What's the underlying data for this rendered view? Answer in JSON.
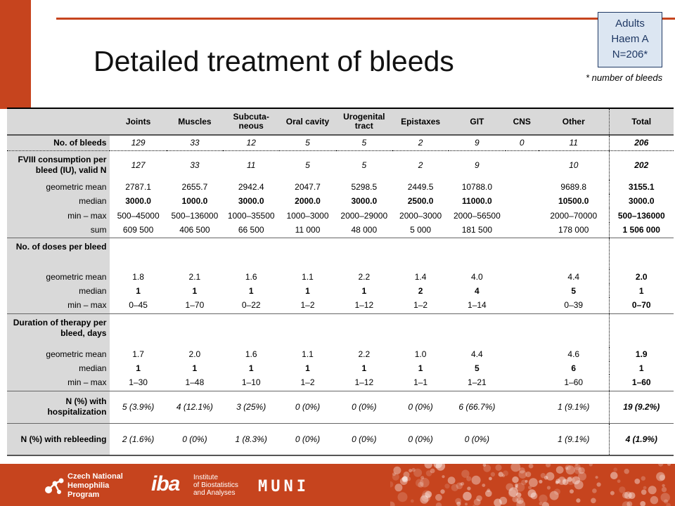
{
  "title": "Detailed treatment of bleeds",
  "info_box": {
    "line1": "Adults",
    "line2": "Haem A",
    "line3": "N=206*"
  },
  "footnote": "* number of bleeds",
  "columns": [
    "Joints",
    "Muscles",
    "Subcuta-neous",
    "Oral cavity",
    "Urogenital tract",
    "Epistaxes",
    "GIT",
    "CNS",
    "Other",
    "Total"
  ],
  "rows": {
    "bleeds": {
      "label": "No. of bleeds",
      "values": [
        "129",
        "33",
        "12",
        "5",
        "5",
        "2",
        "9",
        "0",
        "11",
        "206"
      ]
    },
    "fviii_valid": {
      "label": "FVIII consumption per bleed (IU), valid N",
      "values": [
        "127",
        "33",
        "11",
        "5",
        "5",
        "2",
        "9",
        "",
        "10",
        "202"
      ]
    },
    "fviii_geo": {
      "label": "geometric mean",
      "values": [
        "2787.1",
        "2655.7",
        "2942.4",
        "2047.7",
        "5298.5",
        "2449.5",
        "10788.0",
        "",
        "9689.8",
        "3155.1"
      ]
    },
    "fviii_median": {
      "label": "median",
      "values": [
        "3000.0",
        "1000.0",
        "3000.0",
        "2000.0",
        "3000.0",
        "2500.0",
        "11000.0",
        "",
        "10500.0",
        "3000.0"
      ]
    },
    "fviii_minmax": {
      "label": "min – max",
      "values": [
        "500–45000",
        "500–136000",
        "1000–35500",
        "1000–3000",
        "2000–29000",
        "2000–3000",
        "2000–56500",
        "",
        "2000–70000",
        "500–136000"
      ]
    },
    "fviii_sum": {
      "label": "sum",
      "values": [
        "609 500",
        "406 500",
        "66 500",
        "11 000",
        "48 000",
        "5 000",
        "181 500",
        "",
        "178 000",
        "1 506 000"
      ]
    },
    "doses_head": {
      "label": "No. of doses per bleed"
    },
    "doses_geo": {
      "label": "geometric mean",
      "values": [
        "1.8",
        "2.1",
        "1.6",
        "1.1",
        "2.2",
        "1.4",
        "4.0",
        "",
        "4.4",
        "2.0"
      ]
    },
    "doses_median": {
      "label": "median",
      "values": [
        "1",
        "1",
        "1",
        "1",
        "1",
        "2",
        "4",
        "",
        "5",
        "1"
      ]
    },
    "doses_minmax": {
      "label": "min – max",
      "values": [
        "0–45",
        "1–70",
        "0–22",
        "1–2",
        "1–12",
        "1–2",
        "1–14",
        "",
        "0–39",
        "0–70"
      ]
    },
    "dur_head": {
      "label": "Duration of therapy per bleed, days"
    },
    "dur_geo": {
      "label": "geometric mean",
      "values": [
        "1.7",
        "2.0",
        "1.6",
        "1.1",
        "2.2",
        "1.0",
        "4.4",
        "",
        "4.6",
        "1.9"
      ]
    },
    "dur_median": {
      "label": "median",
      "values": [
        "1",
        "1",
        "1",
        "1",
        "1",
        "1",
        "5",
        "",
        "6",
        "1"
      ]
    },
    "dur_minmax": {
      "label": "min – max",
      "values": [
        "1–30",
        "1–48",
        "1–10",
        "1–2",
        "1–12",
        "1–1",
        "1–21",
        "",
        "1–60",
        "1–60"
      ]
    },
    "hosp": {
      "label": "N (%) with hospitalization",
      "values": [
        "5 (3.9%)",
        "4 (12.1%)",
        "3 (25%)",
        "0 (0%)",
        "0 (0%)",
        "0 (0%)",
        "6 (66.7%)",
        "",
        "1 (9.1%)",
        "19 (9.2%)"
      ]
    },
    "rebleed": {
      "label": "N (%) with rebleeding",
      "values": [
        "2 (1.6%)",
        "0 (0%)",
        "1 (8.3%)",
        "0 (0%)",
        "0 (0%)",
        "0 (0%)",
        "0 (0%)",
        "",
        "1 (9.1%)",
        "4 (1.9%)"
      ]
    }
  },
  "footer": {
    "hemo_logo": [
      "Czech National",
      "Hemophilia",
      "Program"
    ],
    "iba_mark": "iba",
    "iba_text": [
      "Institute",
      "of Biostatistics",
      "and Analyses"
    ],
    "muni": "MUNI"
  },
  "colors": {
    "accent": "#c6441e",
    "header_gray": "#d9d9d9",
    "box_fill": "#dce6f2",
    "box_border": "#1f3864"
  },
  "icons": {
    "hemo_logo": "molecule-icon"
  }
}
